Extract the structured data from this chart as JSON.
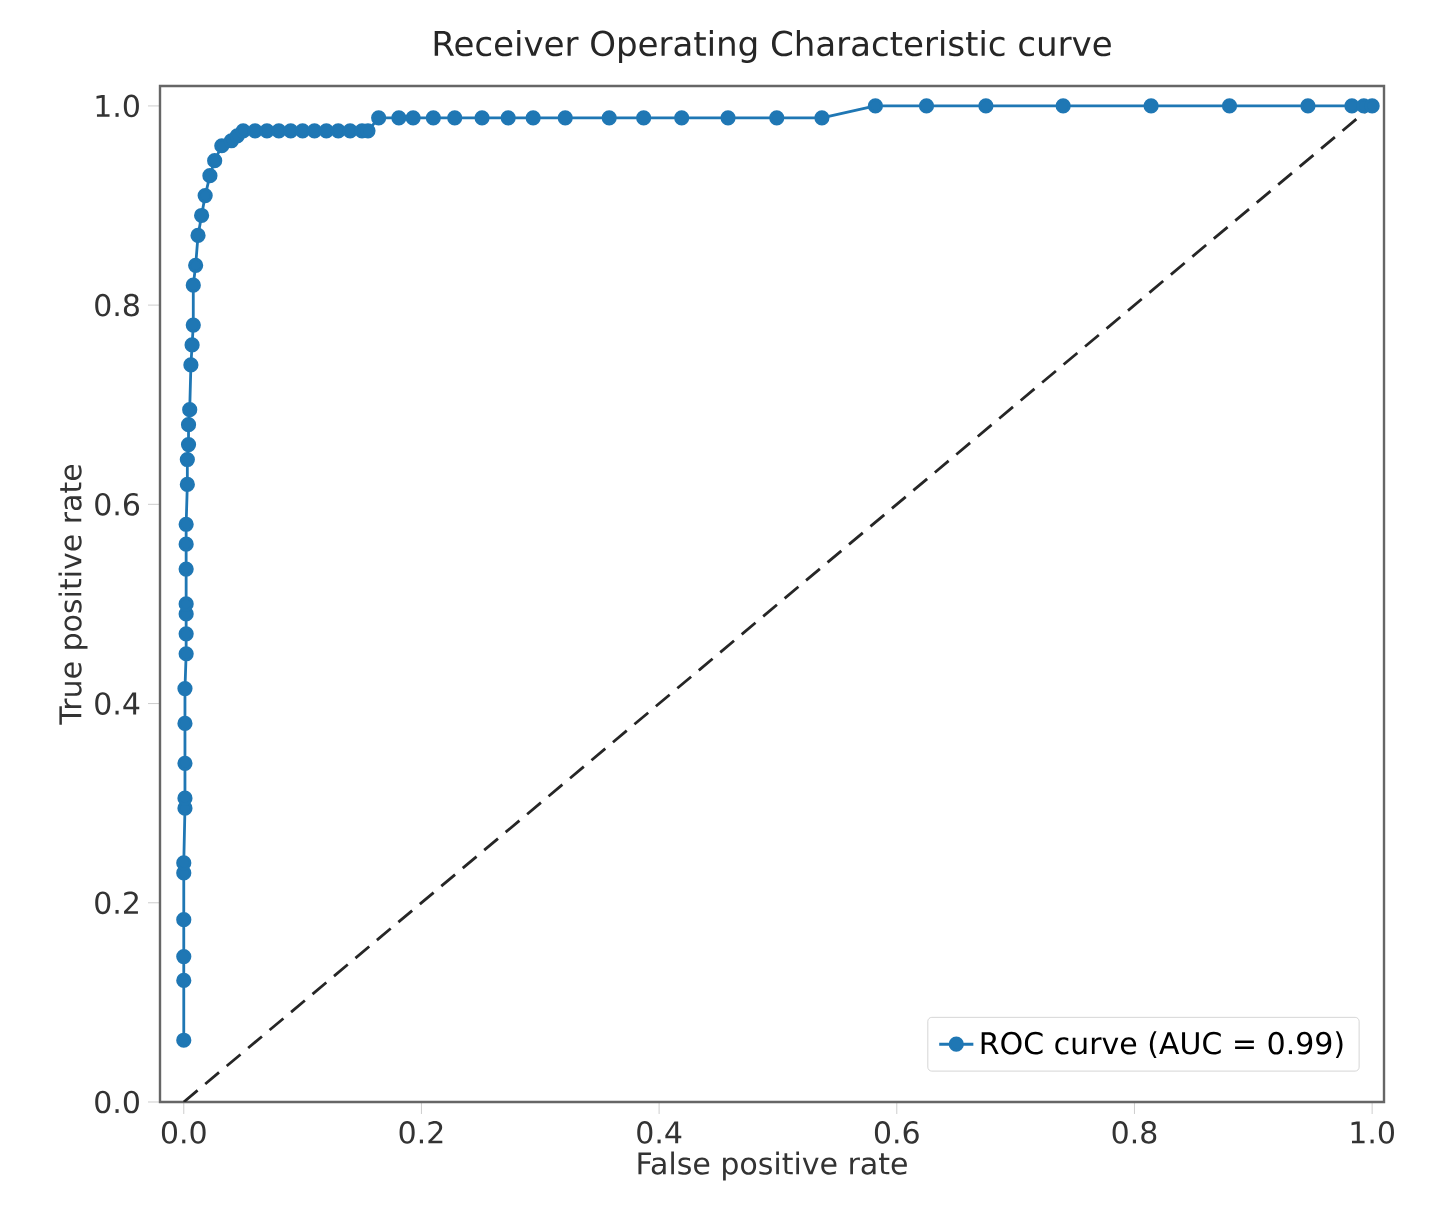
{
  "chart_data": {
    "type": "line",
    "title": "Receiver Operating Characteristic curve",
    "xlabel": "False positive rate",
    "ylabel": "True positive rate",
    "xlim": [
      -0.02,
      1.01
    ],
    "ylim": [
      0,
      1.02
    ],
    "xticks": [
      {
        "value": 0,
        "label": "0.0"
      },
      0.2,
      0.4,
      0.6,
      0.8,
      {
        "value": 1,
        "label": "1.0"
      }
    ],
    "yticks": [
      {
        "value": 0,
        "label": "0.0"
      },
      0.2,
      0.4,
      0.6,
      0.8,
      {
        "value": 1,
        "label": "1.0"
      }
    ],
    "legend": "bottom right",
    "grid": false,
    "series": [
      {
        "name": "ROC curve (AUC = 0.99)",
        "color": "#1f77b4",
        "marker": "circle",
        "line_style": "solid",
        "x": [
          0,
          0,
          0,
          0,
          0,
          0,
          0.001,
          0.001,
          0.001,
          0.001,
          0.001,
          0.002,
          0.002,
          0.002,
          0.002,
          0.002,
          0.002,
          0.002,
          0.003,
          0.003,
          0.004,
          0.004,
          0.005,
          0.006,
          0.007,
          0.008,
          0.008,
          0.01,
          0.012,
          0.015,
          0.018,
          0.022,
          0.026,
          0.032,
          0.04,
          0.045,
          0.05,
          0.06,
          0.07,
          0.08,
          0.09,
          0.1,
          0.11,
          0.12,
          0.13,
          0.14,
          0.15,
          0.155,
          0.164,
          0.181,
          0.193,
          0.21,
          0.228,
          0.251,
          0.273,
          0.294,
          0.321,
          0.358,
          0.387,
          0.419,
          0.458,
          0.499,
          0.537,
          0.582,
          0.625,
          0.675,
          0.74,
          0.814,
          0.88,
          0.946,
          0.983,
          0.993,
          1.0
        ],
        "values": [
          0.062,
          0.122,
          0.146,
          0.183,
          0.23,
          0.24,
          0.295,
          0.305,
          0.34,
          0.38,
          0.415,
          0.45,
          0.47,
          0.49,
          0.5,
          0.535,
          0.56,
          0.58,
          0.62,
          0.645,
          0.66,
          0.68,
          0.695,
          0.74,
          0.76,
          0.78,
          0.82,
          0.84,
          0.87,
          0.89,
          0.91,
          0.93,
          0.945,
          0.96,
          0.965,
          0.97,
          0.975,
          0.975,
          0.975,
          0.975,
          0.975,
          0.975,
          0.975,
          0.975,
          0.975,
          0.975,
          0.975,
          0.975,
          0.988,
          0.988,
          0.988,
          0.988,
          0.988,
          0.988,
          0.988,
          0.988,
          0.988,
          0.988,
          0.988,
          0.988,
          0.988,
          0.988,
          0.988,
          1.0,
          1.0,
          1.0,
          1.0,
          1.0,
          1.0,
          1.0,
          1.0,
          1.0,
          1.0
        ]
      },
      {
        "color": "#262626",
        "marker": "none",
        "line_style": "dashed",
        "x": [
          0,
          1
        ],
        "values": [
          0,
          1
        ]
      }
    ]
  }
}
